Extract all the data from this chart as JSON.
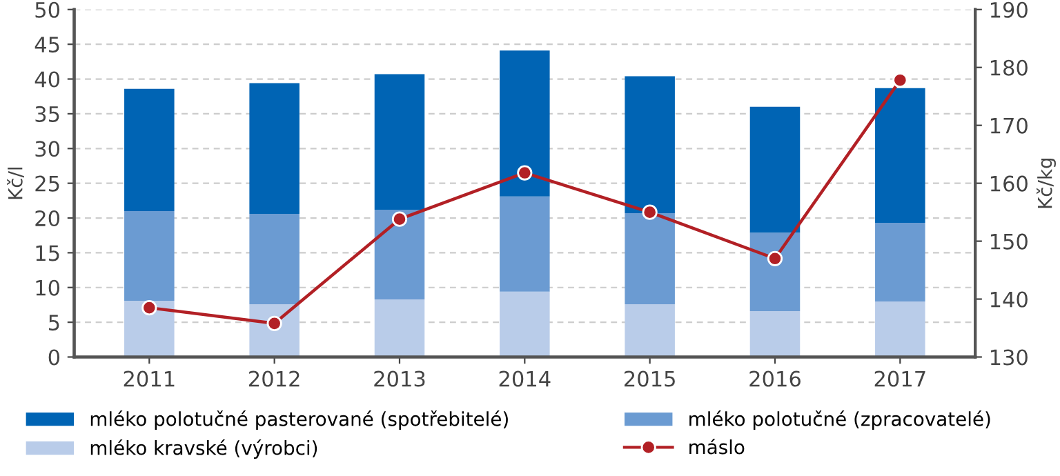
{
  "chart_data": {
    "type": "bar",
    "stacked": true,
    "ylabel": "Kč/l",
    "y2label": "Kč/kg",
    "categories": [
      "2011",
      "2012",
      "2013",
      "2014",
      "2015",
      "2016",
      "2017"
    ],
    "series": [
      {
        "name": "mléko kravské (výrobci)",
        "color": "#b9cce9",
        "values": [
          8.1,
          7.6,
          8.3,
          9.4,
          7.6,
          6.6,
          8.0
        ]
      },
      {
        "name": "mléko polotučné (zpracovatelé)",
        "color": "#6b9bd2",
        "values": [
          12.9,
          13.0,
          12.9,
          13.7,
          13.1,
          11.3,
          11.3
        ]
      },
      {
        "name": "mléko polotučné pasterované (spotřebitelé)",
        "color": "#0064b4",
        "values": [
          17.6,
          18.8,
          19.5,
          21.0,
          19.7,
          18.1,
          19.4
        ]
      },
      {
        "name": "máslo",
        "type": "line",
        "axis": "y2",
        "color": "#b22025",
        "marker": "circle",
        "values": [
          138.5,
          135.8,
          153.8,
          161.8,
          155.0,
          147.0,
          177.8
        ]
      }
    ],
    "ylim": [
      0,
      50
    ],
    "yticks": [
      0,
      5,
      10,
      15,
      20,
      25,
      30,
      35,
      40,
      45,
      50
    ],
    "y2lim": [
      130,
      190
    ],
    "y2ticks": [
      130,
      140,
      150,
      160,
      170,
      180,
      190
    ],
    "grid": "y",
    "legend": "bottom"
  }
}
